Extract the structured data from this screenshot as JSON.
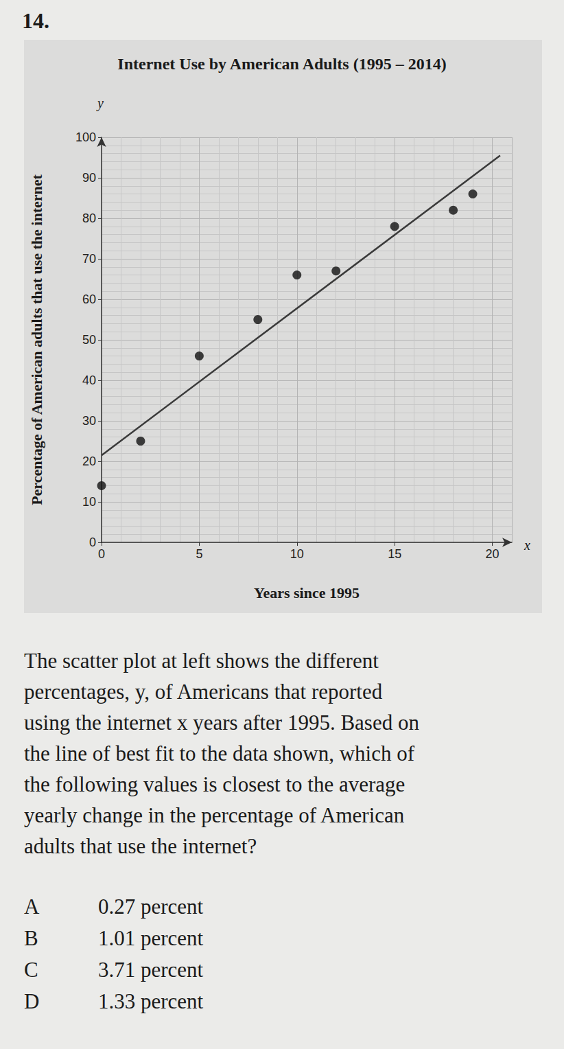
{
  "number": "14.",
  "chart_data": {
    "type": "scatter",
    "title": "Internet Use by American Adults (1995 – 2014)",
    "x_label": "Years since 1995",
    "y_label": "Percentage of American adults that use the internet",
    "x_var": "x",
    "y_var": "y",
    "xlim": [
      0,
      21
    ],
    "xticks": [
      0,
      5,
      10,
      15,
      20
    ],
    "ylim": [
      0,
      100
    ],
    "yticks": [
      0,
      10,
      20,
      30,
      40,
      50,
      60,
      70,
      80,
      90,
      100
    ],
    "grid": true,
    "series": [
      {
        "type": "scatter",
        "color": "#111111",
        "marker": "circle",
        "x": [
          0,
          2,
          5,
          8,
          10,
          12,
          15,
          18,
          19
        ],
        "values": [
          14,
          25,
          46,
          55,
          66,
          67,
          78,
          82,
          86
        ]
      },
      {
        "type": "line",
        "color": "#3a3a3a",
        "line_style": "solid",
        "x": [
          0,
          20.4
        ],
        "values": [
          21.5,
          95.5
        ]
      }
    ]
  },
  "question": {
    "lines": [
      "The scatter plot at left shows the different",
      "percentages, y, of Americans that reported",
      "using the internet x years after 1995. Based on",
      "the line of best fit to the data shown, which of",
      "the following values is closest to the average",
      "yearly change in the percentage of American",
      "adults that use the internet?"
    ],
    "options": [
      {
        "letter": "A",
        "text": "0.27 percent"
      },
      {
        "letter": "B",
        "text": "1.01 percent"
      },
      {
        "letter": "C",
        "text": "3.71 percent"
      },
      {
        "letter": "D",
        "text": "1.33 percent"
      }
    ]
  }
}
